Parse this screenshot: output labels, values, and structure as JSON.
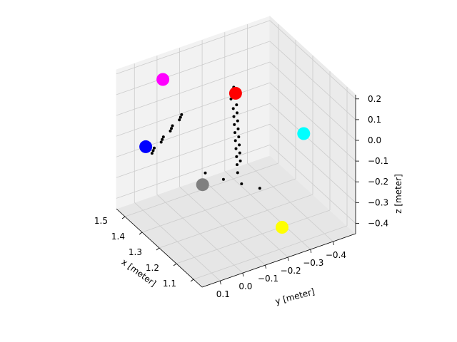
{
  "chart_data": {
    "type": "scatter",
    "projection": "3d",
    "title": "",
    "xlabel": "x [meter]",
    "ylabel": "y [meter]",
    "zlabel": "z [meter]",
    "xlim": [
      1.05,
      1.55
    ],
    "ylim": [
      -0.5,
      0.18
    ],
    "zlim": [
      -0.45,
      0.22
    ],
    "x_ticks": [
      "1.1",
      "1.2",
      "1.3",
      "1.4",
      "1.5"
    ],
    "y_ticks": [
      "0.1",
      "0.0",
      "−0.1",
      "−0.2",
      "−0.3",
      "−0.4"
    ],
    "z_ticks": [
      "−0.4",
      "−0.3",
      "−0.2",
      "−0.1",
      "0.0",
      "0.1",
      "0.2"
    ],
    "grid": true,
    "markers": [
      {
        "color": "#ff00ff",
        "x": 1.45,
        "y": 0.05,
        "z": 0.2
      },
      {
        "color": "#ff0000",
        "x": 1.25,
        "y": -0.12,
        "z": 0.22
      },
      {
        "color": "#00ffff",
        "x": 1.05,
        "y": -0.27,
        "z": 0.12
      },
      {
        "color": "#0000ff",
        "x": 1.55,
        "y": 0.05,
        "z": -0.2
      },
      {
        "color": "#808080",
        "x": 1.35,
        "y": -0.05,
        "z": -0.27
      },
      {
        "color": "#ffff00",
        "x": 1.15,
        "y": -0.25,
        "z": -0.4
      }
    ],
    "series": [
      {
        "color": "#000000",
        "points": [
          [
            1.25,
            -0.1,
            0.2
          ],
          [
            1.25,
            -0.11,
            0.15
          ],
          [
            1.26,
            -0.12,
            0.1
          ],
          [
            1.27,
            -0.13,
            0.05
          ],
          [
            1.28,
            -0.14,
            0.0
          ],
          [
            1.29,
            -0.15,
            -0.05
          ],
          [
            1.3,
            -0.16,
            -0.1
          ],
          [
            1.31,
            -0.17,
            -0.15
          ],
          [
            1.32,
            -0.18,
            -0.2
          ],
          [
            1.33,
            -0.19,
            -0.25
          ],
          [
            1.3,
            -0.15,
            0.2
          ],
          [
            1.3,
            -0.16,
            0.15
          ],
          [
            1.31,
            -0.17,
            0.1
          ],
          [
            1.32,
            -0.18,
            0.05
          ],
          [
            1.33,
            -0.19,
            0.0
          ],
          [
            1.34,
            -0.2,
            -0.05
          ],
          [
            1.35,
            -0.21,
            -0.1
          ],
          [
            1.36,
            -0.22,
            -0.15
          ],
          [
            1.37,
            -0.23,
            -0.2
          ],
          [
            1.38,
            -0.24,
            -0.25
          ],
          [
            1.38,
            0.03,
            0.05
          ],
          [
            1.4,
            0.01,
            0.04
          ],
          [
            1.42,
            -0.01,
            0.03
          ],
          [
            1.42,
            0.04,
            -0.03
          ],
          [
            1.44,
            0.02,
            -0.04
          ],
          [
            1.46,
            0.0,
            -0.05
          ],
          [
            1.46,
            0.05,
            -0.11
          ],
          [
            1.48,
            0.03,
            -0.12
          ],
          [
            1.5,
            0.01,
            -0.13
          ],
          [
            1.5,
            0.06,
            -0.19
          ],
          [
            1.52,
            0.04,
            -0.2
          ],
          [
            1.54,
            0.02,
            -0.21
          ],
          [
            1.4,
            -0.1,
            -0.27
          ],
          [
            1.36,
            -0.15,
            -0.29
          ],
          [
            1.32,
            -0.2,
            -0.3
          ],
          [
            1.28,
            -0.25,
            -0.31
          ]
        ]
      }
    ]
  }
}
